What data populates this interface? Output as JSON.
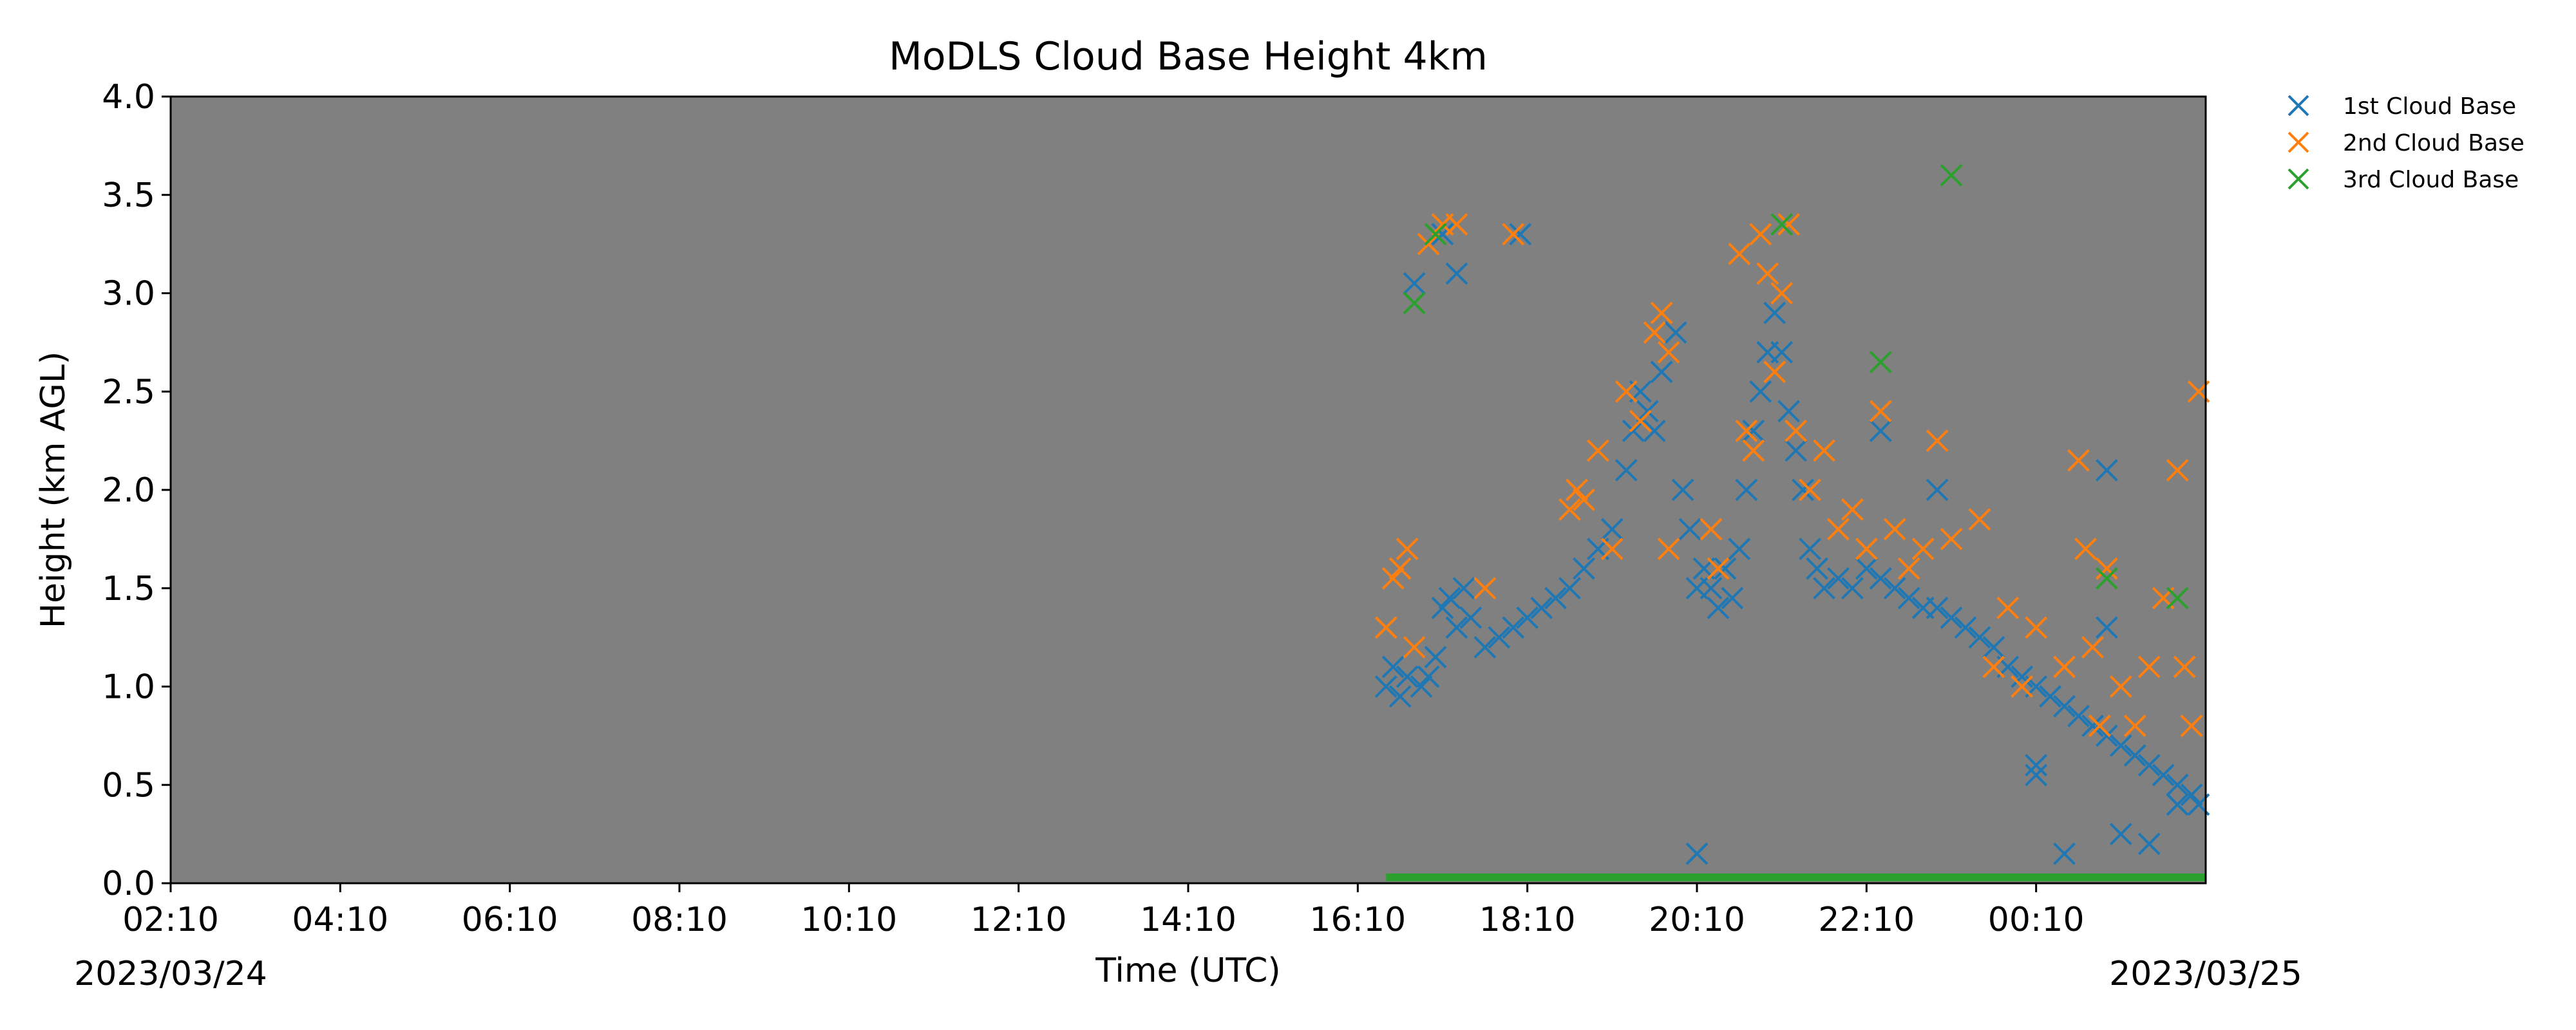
{
  "chart_data": {
    "type": "scatter",
    "title": "MoDLS Cloud Base Height 4km",
    "xlabel": "Time (UTC)",
    "ylabel": "Height (km AGL)",
    "x_ticks": [
      "02:10",
      "04:10",
      "06:10",
      "08:10",
      "10:10",
      "12:10",
      "14:10",
      "16:10",
      "18:10",
      "20:10",
      "22:10",
      "00:10"
    ],
    "x_range": [
      "2023-03-24T02:10",
      "2023-03-25T02:10"
    ],
    "date_start": "2023/03/24",
    "date_end": "2023/03/25",
    "ylim": [
      0,
      4
    ],
    "y_ticks": [
      "0.0",
      "0.5",
      "1.0",
      "1.5",
      "2.0",
      "2.5",
      "3.0",
      "3.5",
      "4.0"
    ],
    "plot_background": "#808080",
    "grid": false,
    "legend_position": "outside-top-right",
    "marker": "x",
    "series": [
      {
        "name": "1st Cloud Base",
        "color": "#1f77b4",
        "points": [
          [
            "16:30",
            1.0
          ],
          [
            "16:35",
            1.1
          ],
          [
            "16:40",
            0.95
          ],
          [
            "16:45",
            1.05
          ],
          [
            "16:50",
            1.2
          ],
          [
            "16:55",
            1.0
          ],
          [
            "17:00",
            1.05
          ],
          [
            "17:05",
            1.15
          ],
          [
            "17:10",
            1.4
          ],
          [
            "17:15",
            1.45
          ],
          [
            "17:20",
            1.3
          ],
          [
            "17:25",
            1.5
          ],
          [
            "17:30",
            1.35
          ],
          [
            "17:40",
            1.2
          ],
          [
            "17:50",
            1.25
          ],
          [
            "18:00",
            1.3
          ],
          [
            "18:10",
            1.35
          ],
          [
            "18:20",
            1.4
          ],
          [
            "18:30",
            1.45
          ],
          [
            "18:40",
            1.5
          ],
          [
            "18:50",
            1.6
          ],
          [
            "19:00",
            1.7
          ],
          [
            "19:10",
            1.8
          ],
          [
            "19:20",
            2.1
          ],
          [
            "19:25",
            2.3
          ],
          [
            "19:30",
            2.5
          ],
          [
            "19:35",
            2.4
          ],
          [
            "19:40",
            2.3
          ],
          [
            "19:45",
            2.6
          ],
          [
            "19:50",
            2.7
          ],
          [
            "19:55",
            2.8
          ],
          [
            "20:00",
            2.0
          ],
          [
            "20:05",
            1.8
          ],
          [
            "20:10",
            1.5
          ],
          [
            "20:15",
            1.6
          ],
          [
            "20:20",
            1.5
          ],
          [
            "20:25",
            1.4
          ],
          [
            "20:30",
            1.6
          ],
          [
            "20:35",
            1.45
          ],
          [
            "20:40",
            1.7
          ],
          [
            "20:45",
            2.0
          ],
          [
            "20:50",
            2.3
          ],
          [
            "20:55",
            2.5
          ],
          [
            "21:00",
            2.7
          ],
          [
            "21:05",
            2.9
          ],
          [
            "21:10",
            2.7
          ],
          [
            "21:15",
            2.4
          ],
          [
            "21:20",
            2.2
          ],
          [
            "21:25",
            2.0
          ],
          [
            "21:30",
            1.7
          ],
          [
            "21:35",
            1.6
          ],
          [
            "21:40",
            1.5
          ],
          [
            "21:50",
            1.55
          ],
          [
            "22:00",
            1.5
          ],
          [
            "22:10",
            1.6
          ],
          [
            "22:20",
            1.55
          ],
          [
            "22:30",
            1.5
          ],
          [
            "22:40",
            1.45
          ],
          [
            "22:50",
            1.4
          ],
          [
            "23:00",
            1.4
          ],
          [
            "23:10",
            1.35
          ],
          [
            "23:20",
            1.3
          ],
          [
            "23:30",
            1.25
          ],
          [
            "23:40",
            1.2
          ],
          [
            "23:50",
            1.1
          ],
          [
            "00:00",
            1.05
          ],
          [
            "00:10",
            1.0
          ],
          [
            "00:20",
            0.95
          ],
          [
            "00:30",
            0.9
          ],
          [
            "00:40",
            0.85
          ],
          [
            "00:50",
            0.8
          ],
          [
            "01:00",
            0.75
          ],
          [
            "01:10",
            0.7
          ],
          [
            "01:20",
            0.65
          ],
          [
            "01:30",
            0.6
          ],
          [
            "01:40",
            0.55
          ],
          [
            "01:50",
            0.5
          ],
          [
            "02:00",
            0.45
          ],
          [
            "02:05",
            0.4
          ],
          [
            "17:10",
            3.3
          ],
          [
            "17:20",
            3.1
          ],
          [
            "16:50",
            3.05
          ],
          [
            "18:05",
            3.3
          ],
          [
            "20:10",
            0.15
          ],
          [
            "22:20",
            2.3
          ],
          [
            "23:00",
            2.0
          ],
          [
            "00:10",
            0.6
          ],
          [
            "00:10",
            0.55
          ],
          [
            "00:30",
            0.15
          ],
          [
            "01:10",
            0.25
          ],
          [
            "01:30",
            0.2
          ],
          [
            "01:50",
            0.4
          ],
          [
            "01:00",
            2.1
          ],
          [
            "01:00",
            1.3
          ]
        ]
      },
      {
        "name": "2nd Cloud Base",
        "color": "#ff7f0e",
        "points": [
          [
            "16:30",
            1.3
          ],
          [
            "16:35",
            1.55
          ],
          [
            "16:40",
            1.6
          ],
          [
            "16:45",
            1.7
          ],
          [
            "16:50",
            1.2
          ],
          [
            "17:00",
            3.25
          ],
          [
            "17:10",
            3.35
          ],
          [
            "17:20",
            3.35
          ],
          [
            "17:40",
            1.5
          ],
          [
            "18:00",
            3.3
          ],
          [
            "18:40",
            1.9
          ],
          [
            "18:45",
            2.0
          ],
          [
            "18:50",
            1.95
          ],
          [
            "19:00",
            2.2
          ],
          [
            "19:10",
            1.7
          ],
          [
            "19:20",
            2.5
          ],
          [
            "19:30",
            2.35
          ],
          [
            "19:40",
            2.8
          ],
          [
            "19:45",
            2.9
          ],
          [
            "19:50",
            2.7
          ],
          [
            "19:50",
            1.7
          ],
          [
            "20:20",
            1.8
          ],
          [
            "20:25",
            1.6
          ],
          [
            "20:40",
            3.2
          ],
          [
            "20:45",
            2.3
          ],
          [
            "20:50",
            2.2
          ],
          [
            "20:55",
            3.3
          ],
          [
            "21:00",
            3.1
          ],
          [
            "21:05",
            2.6
          ],
          [
            "21:10",
            3.0
          ],
          [
            "21:15",
            3.35
          ],
          [
            "21:20",
            2.3
          ],
          [
            "21:30",
            2.0
          ],
          [
            "21:40",
            2.2
          ],
          [
            "21:50",
            1.8
          ],
          [
            "22:00",
            1.9
          ],
          [
            "22:10",
            1.7
          ],
          [
            "22:20",
            2.4
          ],
          [
            "22:30",
            1.8
          ],
          [
            "22:40",
            1.6
          ],
          [
            "22:50",
            1.7
          ],
          [
            "23:00",
            2.25
          ],
          [
            "23:10",
            1.75
          ],
          [
            "23:30",
            1.85
          ],
          [
            "23:40",
            1.1
          ],
          [
            "23:50",
            1.4
          ],
          [
            "00:00",
            1.0
          ],
          [
            "00:10",
            1.3
          ],
          [
            "00:30",
            1.1
          ],
          [
            "00:40",
            2.15
          ],
          [
            "00:45",
            1.7
          ],
          [
            "00:50",
            1.2
          ],
          [
            "00:55",
            0.8
          ],
          [
            "01:00",
            1.6
          ],
          [
            "01:10",
            1.0
          ],
          [
            "01:20",
            0.8
          ],
          [
            "01:30",
            1.1
          ],
          [
            "01:40",
            1.45
          ],
          [
            "01:50",
            2.1
          ],
          [
            "01:55",
            1.1
          ],
          [
            "02:00",
            0.8
          ],
          [
            "02:05",
            2.5
          ]
        ]
      },
      {
        "name": "3rd Cloud Base",
        "color": "#2ca02c",
        "points": [
          [
            "16:50",
            2.95
          ],
          [
            "17:05",
            3.3
          ],
          [
            "21:10",
            3.35
          ],
          [
            "22:20",
            2.65
          ],
          [
            "23:10",
            3.6
          ],
          [
            "01:00",
            1.55
          ],
          [
            "01:50",
            1.45
          ]
        ],
        "baseline": {
          "from": "16:30",
          "to": "02:10",
          "value": 0.03
        }
      }
    ]
  }
}
